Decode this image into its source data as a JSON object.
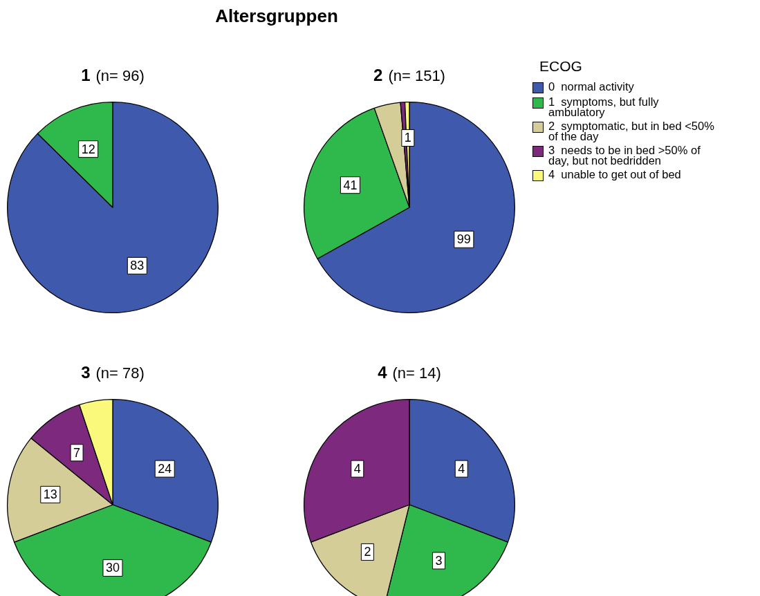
{
  "chart_data": [
    {
      "type": "pie",
      "title": "1",
      "subtitle": "(n= 96)",
      "annotations": [
        "Altersgruppen"
      ],
      "legend": "right",
      "legend_title": "ECOG",
      "categories": [
        "0  normal activity",
        "1  symptoms, but fully ambulatory",
        "2  symptomatic, but in bed <50% of the day",
        "3  needs to be in bed >50% of day, but not bedridden",
        "4  unable to get out of bed"
      ],
      "values": [
        83,
        12,
        0,
        0,
        0
      ],
      "colors": [
        "#3f59ad",
        "#2fb84b",
        "#d5cd98",
        "#7d2a7e",
        "#fbf97b"
      ],
      "value_labels": [
        "83",
        "12",
        null,
        null,
        null
      ]
    },
    {
      "type": "pie",
      "title": "2",
      "subtitle": "(n= 151)",
      "categories": [
        null,
        null,
        null,
        null,
        null
      ],
      "values": [
        99,
        41,
        6,
        1,
        1
      ],
      "colors": [
        "#3f59ad",
        "#2fb84b",
        "#d5cd98",
        "#7d2a7e",
        "#fbf97b"
      ],
      "value_labels": [
        "99",
        "41",
        null,
        null,
        "1"
      ]
    },
    {
      "type": "pie",
      "title": "3",
      "subtitle": "(n= 78)",
      "categories": [
        null,
        null,
        null,
        null,
        null
      ],
      "values": [
        24,
        30,
        13,
        7,
        4
      ],
      "colors": [
        "#3f59ad",
        "#2fb84b",
        "#d5cd98",
        "#7d2a7e",
        "#fbf97b"
      ],
      "value_labels": [
        "24",
        "30",
        "13",
        "7",
        null
      ]
    },
    {
      "type": "pie",
      "title": "4",
      "subtitle": "(n= 14)",
      "categories": [
        null,
        null,
        null,
        null,
        null
      ],
      "values": [
        4,
        3,
        2,
        4,
        0
      ],
      "colors": [
        "#3f59ad",
        "#2fb84b",
        "#d5cd98",
        "#7d2a7e",
        "#fbf97b"
      ],
      "value_labels": [
        "4",
        "3",
        "2",
        "4",
        null
      ]
    }
  ]
}
